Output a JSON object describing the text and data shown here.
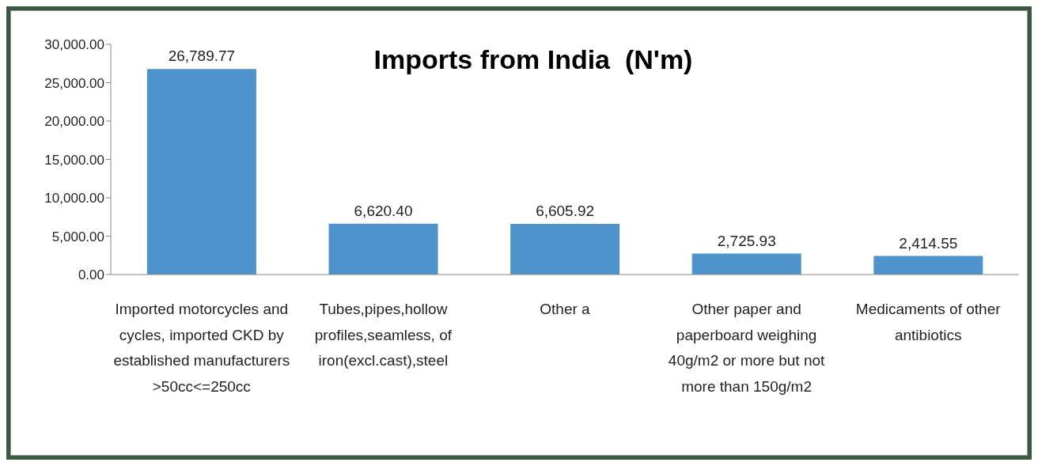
{
  "chart_data": {
    "type": "bar",
    "title": "Imports from India  (N'm)",
    "categories": [
      "Imported motorcycles and cycles, imported CKD by established manufacturers >50cc<=250cc",
      "Tubes,pipes,hollow profiles,seamless, of iron(excl.cast),steel",
      "Other a",
      "Other paper and paperboard weighing 40g/m2 or more but not more than 150g/m2",
      "Medicaments of other antibiotics"
    ],
    "values": [
      26789.77,
      6620.4,
      6605.92,
      2725.93,
      2414.55
    ],
    "value_labels": [
      "26,789.77",
      "6,620.40",
      "6,605.92",
      "2,725.93",
      "2,414.55"
    ],
    "color": "#4f93cd",
    "ylim": [
      0,
      30000
    ],
    "yticks": [
      {
        "value": 0,
        "label": "0.00"
      },
      {
        "value": 5000,
        "label": "5,000.00"
      },
      {
        "value": 10000,
        "label": "10,000.00"
      },
      {
        "value": 15000,
        "label": "15,000.00"
      },
      {
        "value": 20000,
        "label": "20,000.00"
      },
      {
        "value": 25000,
        "label": "25,000.00"
      },
      {
        "value": 30000,
        "label": "30,000.00"
      }
    ],
    "grid": false
  }
}
